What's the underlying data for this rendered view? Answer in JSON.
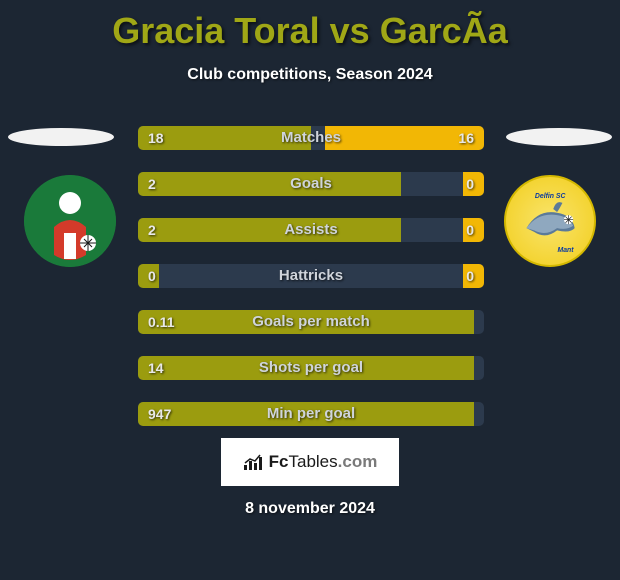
{
  "title_color": "#a0a716",
  "title": "Gracia Toral vs GarcÃa",
  "subtitle": "Club competitions, Season 2024",
  "date": "8 november 2024",
  "logo_text_parts": {
    "fc": "Fc",
    "tables": "Tables",
    "com": ".com"
  },
  "colors": {
    "background": "#1c2633",
    "bar_bg": "#2c3a4d",
    "left_series": "#9b9c0f",
    "right_series": "#f2b705",
    "ellipse": "#f2f2f2",
    "text_muted": "#cfd4db"
  },
  "bars": [
    {
      "label": "Matches",
      "left_val": "18",
      "right_val": "16",
      "left_pct": 50,
      "right_pct": 46
    },
    {
      "label": "Goals",
      "left_val": "2",
      "right_val": "0",
      "left_pct": 76,
      "right_pct": 6
    },
    {
      "label": "Assists",
      "left_val": "2",
      "right_val": "0",
      "left_pct": 76,
      "right_pct": 6
    },
    {
      "label": "Hattricks",
      "left_val": "0",
      "right_val": "0",
      "left_pct": 6,
      "right_pct": 6
    },
    {
      "label": "Goals per match",
      "left_val": "0.11",
      "right_val": "",
      "left_pct": 97,
      "right_pct": 0
    },
    {
      "label": "Shots per goal",
      "left_val": "14",
      "right_val": "",
      "left_pct": 97,
      "right_pct": 0
    },
    {
      "label": "Min per goal",
      "left_val": "947",
      "right_val": "",
      "left_pct": 97,
      "right_pct": 0
    }
  ]
}
